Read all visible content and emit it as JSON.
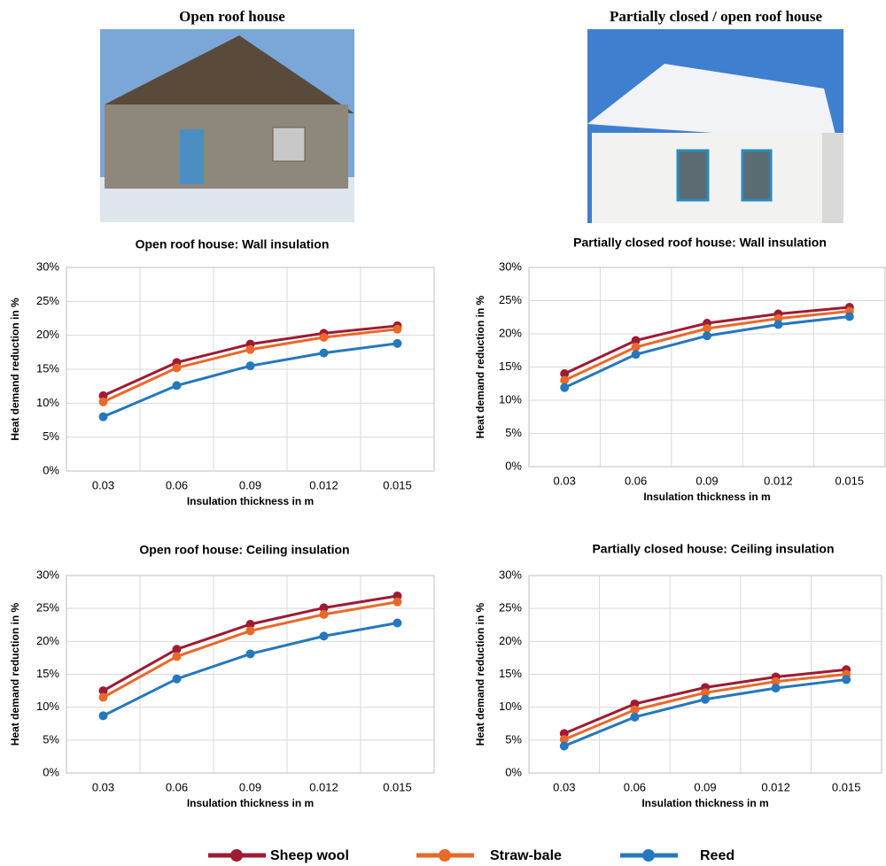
{
  "photos": [
    {
      "title": "Open roof house"
    },
    {
      "title": "Partially closed / open roof house"
    }
  ],
  "chart_data": [
    {
      "type": "line",
      "title": "Open roof house: Wall insulation",
      "x_label": "Insulation thickness in m",
      "y_label": "Heat demand reduction in %",
      "categories": [
        "0.03",
        "0.06",
        "0.09",
        "0.012",
        "0.015"
      ],
      "ylim": [
        0,
        30
      ],
      "yticks": [
        {
          "value": 0,
          "label": "0%"
        },
        {
          "value": 5,
          "label": "5%"
        },
        {
          "value": 10,
          "label": "10%"
        },
        {
          "value": 15,
          "label": "15%"
        },
        {
          "value": 20,
          "label": "20%"
        },
        {
          "value": 25,
          "label": "25%"
        },
        {
          "value": 30,
          "label": "30%"
        }
      ],
      "grid": true,
      "series": [
        {
          "name": "Sheep wool",
          "color": "#9e1b32",
          "values": [
            11.1,
            16.0,
            18.7,
            20.3,
            21.4
          ]
        },
        {
          "name": "Straw-bale",
          "color": "#e8692a",
          "values": [
            10.2,
            15.2,
            17.9,
            19.7,
            20.9
          ]
        },
        {
          "name": "Reed",
          "color": "#2478bd",
          "values": [
            8.0,
            12.6,
            15.5,
            17.4,
            18.8
          ]
        }
      ]
    },
    {
      "type": "line",
      "title": "Partially closed roof house: Wall insulation",
      "x_label": "Insulation thickness in m",
      "y_label": "Heat demand reduction in %",
      "categories": [
        "0.03",
        "0.06",
        "0.09",
        "0.012",
        "0.015"
      ],
      "ylim": [
        0,
        30
      ],
      "yticks": [
        {
          "value": 0,
          "label": "0%"
        },
        {
          "value": 5,
          "label": "5%"
        },
        {
          "value": 10,
          "label": "10%"
        },
        {
          "value": 15,
          "label": "15%"
        },
        {
          "value": 20,
          "label": "20%"
        },
        {
          "value": 25,
          "label": "25%"
        },
        {
          "value": 30,
          "label": "30%"
        }
      ],
      "grid": true,
      "series": [
        {
          "name": "Sheep wool",
          "color": "#9e1b32",
          "values": [
            14.0,
            19.0,
            21.6,
            23.0,
            24.0
          ]
        },
        {
          "name": "Straw-bale",
          "color": "#e8692a",
          "values": [
            13.0,
            18.0,
            20.8,
            22.3,
            23.4
          ]
        },
        {
          "name": "Reed",
          "color": "#2478bd",
          "values": [
            11.9,
            16.9,
            19.7,
            21.4,
            22.6
          ]
        }
      ]
    },
    {
      "type": "line",
      "title": "Open roof house: Ceiling insulation",
      "x_label": "Insulation thickness in m",
      "y_label": "Heat demand reduction in %",
      "categories": [
        "0.03",
        "0.06",
        "0.09",
        "0.012",
        "0.015"
      ],
      "ylim": [
        0,
        30
      ],
      "yticks": [
        {
          "value": 0,
          "label": "0%"
        },
        {
          "value": 5,
          "label": "5%"
        },
        {
          "value": 10,
          "label": "10%"
        },
        {
          "value": 15,
          "label": "15%"
        },
        {
          "value": 20,
          "label": "20%"
        },
        {
          "value": 25,
          "label": "25%"
        },
        {
          "value": 30,
          "label": "30%"
        }
      ],
      "grid": true,
      "series": [
        {
          "name": "Sheep wool",
          "color": "#9e1b32",
          "values": [
            12.5,
            18.8,
            22.6,
            25.1,
            26.9
          ]
        },
        {
          "name": "Straw-bale",
          "color": "#e8692a",
          "values": [
            11.5,
            17.7,
            21.6,
            24.1,
            26.0
          ]
        },
        {
          "name": "Reed",
          "color": "#2478bd",
          "values": [
            8.7,
            14.3,
            18.1,
            20.8,
            22.8
          ]
        }
      ]
    },
    {
      "type": "line",
      "title": "Partially closed house: Ceiling insulation",
      "x_label": "Insulation thickness in m",
      "y_label": "Heat demand reduction in %",
      "categories": [
        "0.03",
        "0.06",
        "0.09",
        "0.012",
        "0.015"
      ],
      "ylim": [
        0,
        30
      ],
      "yticks": [
        {
          "value": 0,
          "label": "0%"
        },
        {
          "value": 5,
          "label": "5%"
        },
        {
          "value": 10,
          "label": "10%"
        },
        {
          "value": 15,
          "label": "15%"
        },
        {
          "value": 20,
          "label": "20%"
        },
        {
          "value": 25,
          "label": "25%"
        },
        {
          "value": 30,
          "label": "30%"
        }
      ],
      "grid": true,
      "series": [
        {
          "name": "Sheep wool",
          "color": "#9e1b32",
          "values": [
            6.0,
            10.5,
            13.0,
            14.6,
            15.7
          ]
        },
        {
          "name": "Straw-bale",
          "color": "#e8692a",
          "values": [
            5.1,
            9.6,
            12.2,
            13.9,
            15.0
          ]
        },
        {
          "name": "Reed",
          "color": "#2478bd",
          "values": [
            4.1,
            8.5,
            11.2,
            12.9,
            14.2
          ]
        }
      ]
    }
  ]
}
